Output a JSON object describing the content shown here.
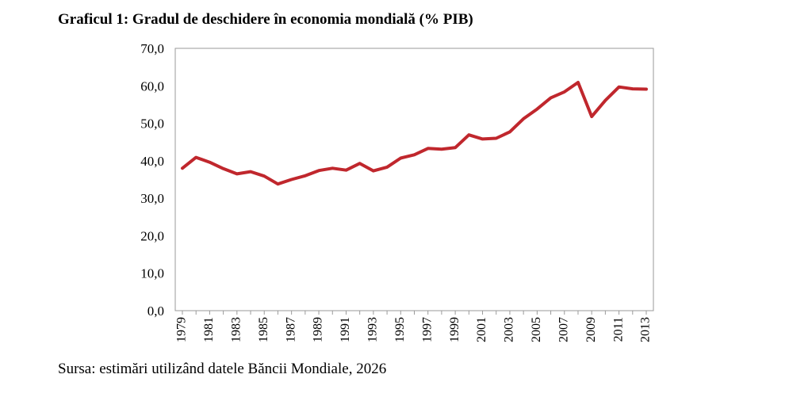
{
  "title": "Graficul 1: Gradul de deschidere în economia mondială (% PIB)",
  "source": "Sursa: estimări utilizând datele Băncii Mondiale, 2026",
  "chart_data": {
    "type": "line",
    "title": "Graficul 1: Gradul de deschidere în economia mondială (% PIB)",
    "xlabel": "",
    "ylabel": "",
    "ylim": [
      0,
      70
    ],
    "y_ticks": [
      "0,0",
      "10,0",
      "20,0",
      "30,0",
      "40,0",
      "50,0",
      "60,0",
      "70,0"
    ],
    "x_tick_labels": [
      "1979",
      "1981",
      "1983",
      "1985",
      "1987",
      "1989",
      "1991",
      "1993",
      "1995",
      "1997",
      "1999",
      "2001",
      "2003",
      "2005",
      "2007",
      "2009",
      "2011",
      "2013"
    ],
    "grid": false,
    "legend": "none",
    "colors": {
      "line": "#c0272d",
      "frame": "#9a9a9a"
    },
    "series": [
      {
        "x": [
          1979,
          1980,
          1981,
          1982,
          1983,
          1984,
          1985,
          1986,
          1987,
          1988,
          1989,
          1990,
          1991,
          1992,
          1993,
          1994,
          1995,
          1996,
          1997,
          1998,
          1999,
          2000,
          2001,
          2002,
          2003,
          2004,
          2005,
          2006,
          2007,
          2008,
          2009,
          2010,
          2011,
          2012,
          2013
        ],
        "values": [
          38.0,
          40.9,
          39.6,
          37.9,
          36.5,
          37.1,
          35.9,
          33.8,
          35.0,
          36.0,
          37.4,
          38.0,
          37.5,
          39.3,
          37.3,
          38.3,
          40.7,
          41.6,
          43.3,
          43.1,
          43.5,
          46.9,
          45.8,
          46.0,
          47.7,
          51.2,
          53.8,
          56.8,
          58.4,
          60.9,
          51.8,
          56.1,
          59.7,
          59.2,
          59.1
        ]
      }
    ]
  }
}
